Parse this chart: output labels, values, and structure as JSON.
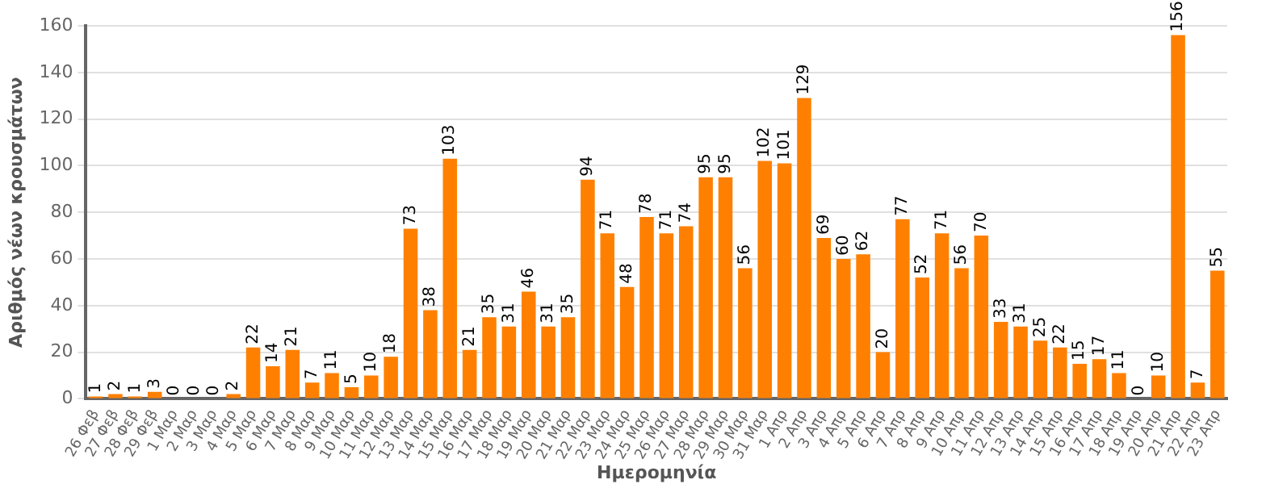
{
  "chart_data": {
    "type": "bar",
    "xlabel": "Ημερομηνία",
    "ylabel": "Αριθμός νέων κρουσμάτων",
    "categories": [
      "26 Φεβ",
      "27 Φεβ",
      "28 Φεβ",
      "29 Φεβ",
      "1 Μαρ",
      "2 Μαρ",
      "3 Μαρ",
      "4 Μαρ",
      "5 Μαρ",
      "6 Μαρ",
      "7 Μαρ",
      "8 Μαρ",
      "9 Μαρ",
      "10 Μαρ",
      "11 Μαρ",
      "12 Μαρ",
      "13 Μαρ",
      "14 Μαρ",
      "15 Μαρ",
      "16 Μαρ",
      "17 Μαρ",
      "18 Μαρ",
      "19 Μαρ",
      "20 Μαρ",
      "21 Μαρ",
      "22 Μαρ",
      "23 Μαρ",
      "24 Μαρ",
      "25 Μαρ",
      "26 Μαρ",
      "27 Μαρ",
      "28 Μαρ",
      "29 Μαρ",
      "30 Μαρ",
      "31 Μαρ",
      "1 Απρ",
      "2 Απρ",
      "3 Απρ",
      "4 Απρ",
      "5 Απρ",
      "6 Απρ",
      "7 Απρ",
      "8 Απρ",
      "9 Απρ",
      "10 Απρ",
      "11 Απρ",
      "12 Απρ",
      "13 Απρ",
      "14 Απρ",
      "15 Απρ",
      "16 Απρ",
      "17 Απρ",
      "18 Απρ",
      "19 Απρ",
      "20 Απρ",
      "21 Απρ",
      "22 Απρ",
      "23 Απρ"
    ],
    "values": [
      1,
      2,
      1,
      3,
      0,
      0,
      0,
      2,
      22,
      14,
      21,
      7,
      11,
      5,
      10,
      18,
      73,
      38,
      103,
      21,
      35,
      31,
      46,
      31,
      35,
      94,
      71,
      48,
      78,
      71,
      74,
      95,
      95,
      56,
      102,
      101,
      129,
      69,
      60,
      62,
      20,
      77,
      52,
      71,
      56,
      70,
      33,
      31,
      25,
      22,
      15,
      17,
      11,
      0,
      10,
      156,
      7,
      55
    ],
    "color": "#ff8000",
    "ylim": [
      0,
      160
    ],
    "yticks": [
      0,
      20,
      40,
      60,
      80,
      100,
      120,
      140,
      160
    ],
    "grid": "y",
    "data_labels": true
  }
}
